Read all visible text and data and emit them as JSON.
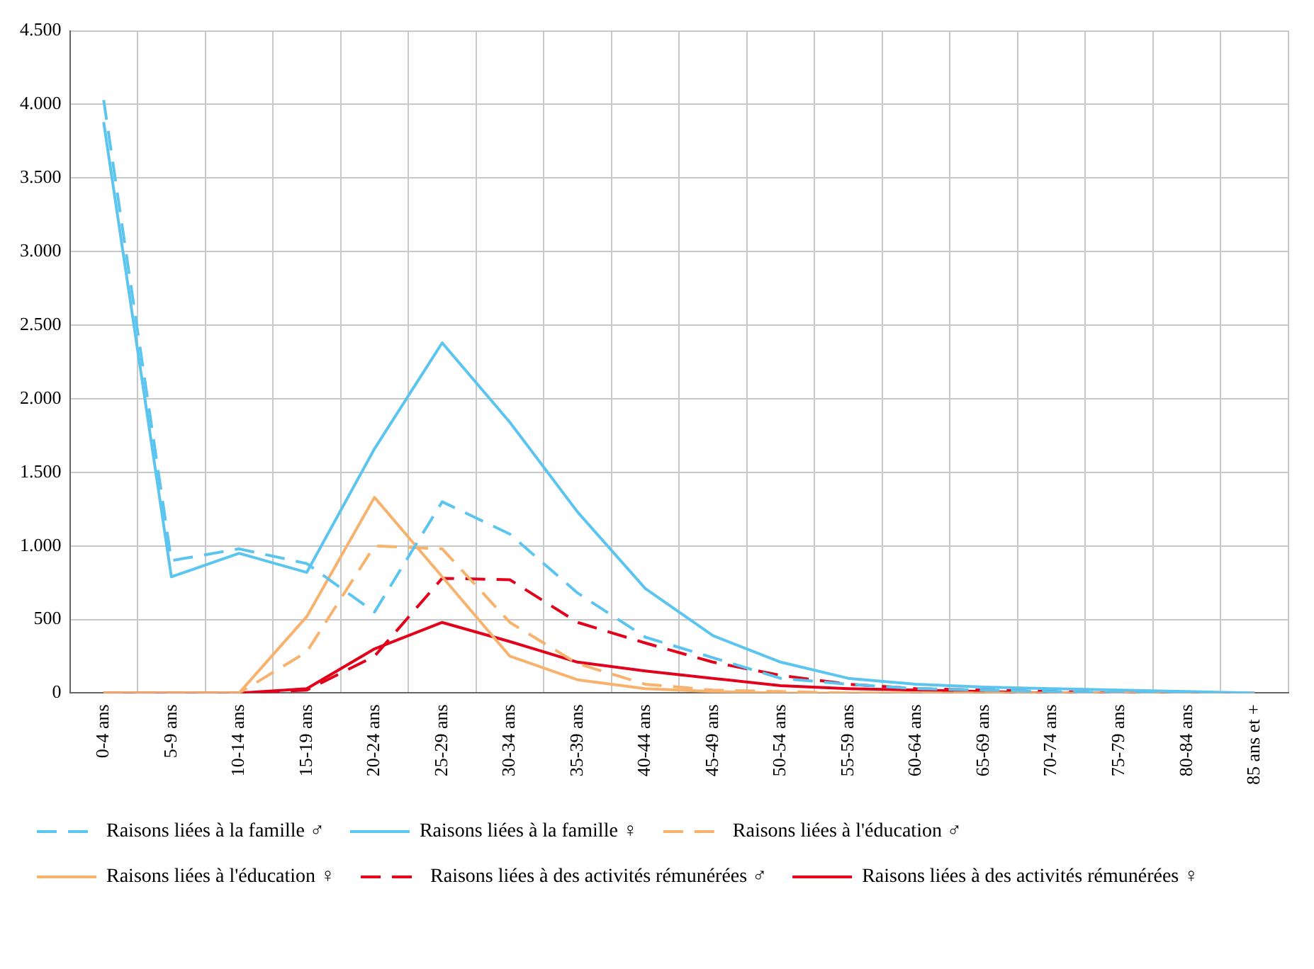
{
  "chart_data": {
    "type": "line",
    "categories": [
      "0-4 ans",
      "5-9 ans",
      "10-14 ans",
      "15-19 ans",
      "20-24 ans",
      "25-29 ans",
      "30-34 ans",
      "35-39 ans",
      "40-44 ans",
      "45-49 ans",
      "50-54 ans",
      "55-59 ans",
      "60-64 ans",
      "65-69 ans",
      "70-74 ans",
      "75-79 ans",
      "80-84 ans",
      "85 ans et +"
    ],
    "series": [
      {
        "name": "Raisons liées à la famille ♂",
        "color": "#5bc5f0",
        "line_style": "dashed",
        "values": [
          4030,
          900,
          980,
          880,
          550,
          1300,
          1080,
          680,
          380,
          240,
          100,
          60,
          30,
          20,
          10,
          0,
          0,
          0
        ]
      },
      {
        "name": "Raisons liées à la famille ♀",
        "color": "#5bc5f0",
        "line_style": "solid",
        "values": [
          3880,
          790,
          950,
          820,
          1660,
          2380,
          1840,
          1230,
          710,
          390,
          210,
          100,
          60,
          40,
          30,
          20,
          10,
          0
        ]
      },
      {
        "name": "Raisons liées à l'éducation ♂",
        "color": "#f7b26e",
        "line_style": "dashed",
        "values": [
          0,
          0,
          0,
          280,
          1000,
          980,
          480,
          200,
          60,
          20,
          10,
          0,
          0,
          0,
          0,
          0,
          0,
          0
        ]
      },
      {
        "name": "Raisons liées à l'éducation ♀",
        "color": "#f7b26e",
        "line_style": "solid",
        "values": [
          0,
          0,
          0,
          520,
          1330,
          790,
          250,
          90,
          30,
          10,
          0,
          0,
          0,
          0,
          0,
          0,
          0,
          0
        ]
      },
      {
        "name": "Raisons liées à des activités rémunérées ♂",
        "color": "#e2001a",
        "line_style": "dashed",
        "values": [
          0,
          0,
          0,
          20,
          250,
          780,
          770,
          480,
          340,
          210,
          120,
          60,
          30,
          20,
          10,
          0,
          0,
          0
        ]
      },
      {
        "name": "Raisons liées à des activités rémunérées ♀",
        "color": "#e2001a",
        "line_style": "solid",
        "values": [
          0,
          0,
          0,
          30,
          300,
          480,
          350,
          210,
          150,
          100,
          50,
          30,
          20,
          10,
          0,
          0,
          0,
          0
        ]
      }
    ],
    "ylim": [
      0,
      4500
    ],
    "yticks": [
      0,
      500,
      {
        "value": 1000,
        "label": "1.000"
      },
      {
        "value": 1500,
        "label": "1.500"
      },
      {
        "value": 2000,
        "label": "2.000"
      },
      {
        "value": 2500,
        "label": "2.500"
      },
      {
        "value": 3000,
        "label": "3.000"
      },
      {
        "value": 3500,
        "label": "3.500"
      },
      {
        "value": 4000,
        "label": "4.000"
      },
      {
        "value": 4500,
        "label": "4.500"
      }
    ],
    "grid": true,
    "legend": "bottom",
    "marker": "none"
  }
}
